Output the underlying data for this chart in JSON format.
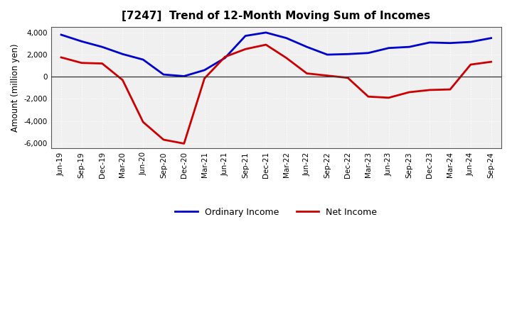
{
  "title": "[7247]  Trend of 12-Month Moving Sum of Incomes",
  "ylabel": "Amount (million yen)",
  "ylim": [
    -6500,
    4500
  ],
  "yticks": [
    -6000,
    -4000,
    -2000,
    0,
    2000,
    4000
  ],
  "background_color": "#ffffff",
  "plot_bg_color": "#f0f0f0",
  "ordinary_income_color": "#0000cc",
  "net_income_color": "#cc0000",
  "grid_color": "#ffffff",
  "labels": [
    "Jun-19",
    "Sep-19",
    "Dec-19",
    "Mar-20",
    "Jun-20",
    "Sep-20",
    "Dec-20",
    "Mar-21",
    "Jun-21",
    "Sep-21",
    "Dec-21",
    "Mar-22",
    "Jun-22",
    "Sep-22",
    "Dec-22",
    "Mar-23",
    "Jun-23",
    "Sep-23",
    "Dec-23",
    "Mar-24",
    "Jun-24",
    "Sep-24"
  ],
  "ordinary_income": [
    3800,
    3200,
    2700,
    2050,
    1550,
    200,
    50,
    600,
    1700,
    3700,
    4000,
    3500,
    2700,
    2000,
    2050,
    2150,
    2600,
    2700,
    3100,
    3050,
    3150,
    3500
  ],
  "net_income": [
    1750,
    1250,
    1200,
    -300,
    -4100,
    -5700,
    -6050,
    -150,
    1800,
    2500,
    2900,
    1700,
    300,
    100,
    -100,
    -1800,
    -1900,
    -1400,
    -1200,
    -1150,
    1100,
    1350
  ],
  "title_fontsize": 11,
  "tick_fontsize": 7.5,
  "ylabel_fontsize": 8.5,
  "legend_fontsize": 9,
  "linewidth": 2.0
}
